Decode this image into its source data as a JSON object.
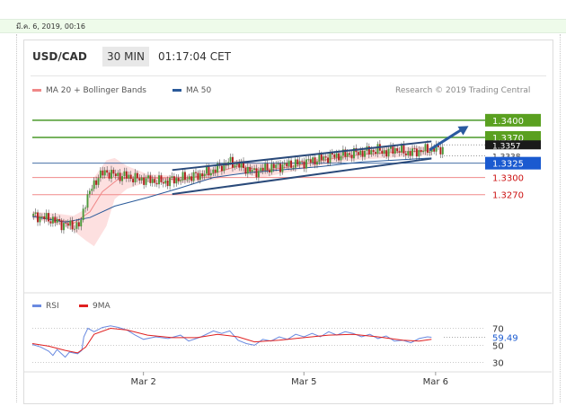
{
  "page": {
    "date_header": "มี.ค. 6, 2019, 00:16"
  },
  "header": {
    "pair": "USD/CAD",
    "timeframe": "30 MIN",
    "time": "01:17:04 CET"
  },
  "legend": {
    "bollinger": "MA 20 + Bollinger Bands",
    "ma50": "MA 50",
    "credit": "Research © 2019 Trading Central"
  },
  "rsi_legend": {
    "rsi": "RSI",
    "ma9": "9MA"
  },
  "colors": {
    "up": "#4a9a3a",
    "down": "#b02020",
    "bollinger": "#f08888",
    "ma50": "#2a5a9a",
    "resistance": "#4a9a2a",
    "support": "#f08a8a",
    "pivot": "#2a5a9a",
    "rsi": "#6a8ae0",
    "rsi_ma": "#e02020"
  },
  "chart_data": [
    {
      "type": "candlestick",
      "title": "USD/CAD 30 MIN",
      "x_labels": [
        "Mar 2",
        "Mar 5",
        "Mar 6"
      ],
      "ylim": [
        1.3108,
        1.3428
      ],
      "levels": [
        {
          "label": "1.3400",
          "value": 1.34,
          "kind": "resistance"
        },
        {
          "label": "1.3370",
          "value": 1.337,
          "kind": "resistance"
        },
        {
          "label": "1.3357",
          "value": 1.3357,
          "kind": "price"
        },
        {
          "label": "1.3338",
          "value": 1.3338,
          "kind": "price"
        },
        {
          "label": "1.3325",
          "value": 1.3325,
          "kind": "pivot"
        },
        {
          "label": "1.3300",
          "value": 1.33,
          "kind": "support"
        },
        {
          "label": "1.3270",
          "value": 1.327,
          "kind": "support"
        }
      ],
      "channel": {
        "upper": [
          [
            0.34,
            1.3313
          ],
          [
            0.97,
            1.3363
          ]
        ],
        "lower": [
          [
            0.34,
            1.3271
          ],
          [
            0.97,
            1.3333
          ]
        ]
      },
      "arrow": {
        "from": [
          0.965,
          1.3348
        ],
        "to": [
          1.06,
          1.339
        ]
      },
      "candle_count": 190,
      "price_path": [
        [
          0,
          1.3233
        ],
        [
          0.02,
          1.3231
        ],
        [
          0.05,
          1.3226
        ],
        [
          0.07,
          1.3219
        ],
        [
          0.09,
          1.3217
        ],
        [
          0.11,
          1.3215
        ],
        [
          0.12,
          1.3222
        ],
        [
          0.125,
          1.3252
        ],
        [
          0.14,
          1.3275
        ],
        [
          0.16,
          1.3302
        ],
        [
          0.18,
          1.331
        ],
        [
          0.2,
          1.3304
        ],
        [
          0.23,
          1.3302
        ],
        [
          0.26,
          1.3297
        ],
        [
          0.29,
          1.3295
        ],
        [
          0.32,
          1.3292
        ],
        [
          0.35,
          1.3297
        ],
        [
          0.38,
          1.33
        ],
        [
          0.41,
          1.3305
        ],
        [
          0.44,
          1.3312
        ],
        [
          0.46,
          1.332
        ],
        [
          0.48,
          1.3327
        ],
        [
          0.5,
          1.3322
        ],
        [
          0.52,
          1.3315
        ],
        [
          0.54,
          1.3309
        ],
        [
          0.56,
          1.3315
        ],
        [
          0.6,
          1.332
        ],
        [
          0.64,
          1.3324
        ],
        [
          0.68,
          1.3329
        ],
        [
          0.72,
          1.3336
        ],
        [
          0.76,
          1.334
        ],
        [
          0.8,
          1.3344
        ],
        [
          0.84,
          1.3348
        ],
        [
          0.86,
          1.3344
        ],
        [
          0.88,
          1.335
        ],
        [
          0.91,
          1.3343
        ],
        [
          0.94,
          1.3346
        ],
        [
          0.97,
          1.335
        ]
      ],
      "ma50": [
        [
          0,
          1.3232
        ],
        [
          0.08,
          1.3222
        ],
        [
          0.14,
          1.323
        ],
        [
          0.2,
          1.325
        ],
        [
          0.28,
          1.3265
        ],
        [
          0.36,
          1.3282
        ],
        [
          0.44,
          1.33
        ],
        [
          0.52,
          1.3308
        ],
        [
          0.6,
          1.3313
        ],
        [
          0.7,
          1.3319
        ],
        [
          0.8,
          1.3327
        ],
        [
          0.9,
          1.3331
        ],
        [
          0.97,
          1.3334
        ]
      ],
      "ma20": [
        [
          0,
          1.3234
        ],
        [
          0.06,
          1.3227
        ],
        [
          0.1,
          1.322
        ],
        [
          0.14,
          1.324
        ],
        [
          0.17,
          1.3275
        ],
        [
          0.21,
          1.3298
        ],
        [
          0.28,
          1.33
        ],
        [
          0.36,
          1.3296
        ],
        [
          0.44,
          1.3307
        ],
        [
          0.5,
          1.332
        ],
        [
          0.56,
          1.3312
        ],
        [
          0.64,
          1.332
        ],
        [
          0.72,
          1.3332
        ],
        [
          0.8,
          1.334
        ],
        [
          0.88,
          1.3344
        ],
        [
          0.97,
          1.3347
        ]
      ],
      "bb_upper": [
        [
          0,
          1.324
        ],
        [
          0.06,
          1.3237
        ],
        [
          0.1,
          1.3233
        ],
        [
          0.13,
          1.3245
        ],
        [
          0.15,
          1.33
        ],
        [
          0.18,
          1.333
        ],
        [
          0.2,
          1.3334
        ],
        [
          0.23,
          1.332
        ],
        [
          0.28,
          1.3306
        ],
        [
          0.36,
          1.3302
        ],
        [
          0.44,
          1.3318
        ],
        [
          0.5,
          1.3331
        ],
        [
          0.56,
          1.3325
        ],
        [
          0.64,
          1.3328
        ],
        [
          0.72,
          1.334
        ],
        [
          0.8,
          1.3349
        ],
        [
          0.88,
          1.3353
        ],
        [
          0.97,
          1.3355
        ]
      ],
      "bb_lower": [
        [
          0,
          1.3228
        ],
        [
          0.06,
          1.3218
        ],
        [
          0.1,
          1.3207
        ],
        [
          0.13,
          1.319
        ],
        [
          0.15,
          1.318
        ],
        [
          0.18,
          1.3215
        ],
        [
          0.2,
          1.3262
        ],
        [
          0.23,
          1.328
        ],
        [
          0.28,
          1.3292
        ],
        [
          0.36,
          1.329
        ],
        [
          0.44,
          1.3296
        ],
        [
          0.5,
          1.3307
        ],
        [
          0.56,
          1.33
        ],
        [
          0.64,
          1.3312
        ],
        [
          0.72,
          1.3324
        ],
        [
          0.8,
          1.3331
        ],
        [
          0.88,
          1.3335
        ],
        [
          0.97,
          1.3339
        ]
      ]
    },
    {
      "type": "line",
      "title": "RSI",
      "ylim": [
        25,
        78
      ],
      "y_ticks": [
        30,
        50,
        70
      ],
      "current": {
        "label": "59.49",
        "value": 59.49
      },
      "series": [
        {
          "name": "RSI",
          "values": [
            [
              0,
              51
            ],
            [
              0.02,
              48
            ],
            [
              0.04,
              43
            ],
            [
              0.05,
              38
            ],
            [
              0.06,
              45
            ],
            [
              0.08,
              36
            ],
            [
              0.09,
              42
            ],
            [
              0.11,
              40
            ],
            [
              0.12,
              44
            ],
            [
              0.125,
              60
            ],
            [
              0.135,
              70
            ],
            [
              0.15,
              66
            ],
            [
              0.17,
              71
            ],
            [
              0.19,
              73
            ],
            [
              0.21,
              71
            ],
            [
              0.23,
              68
            ],
            [
              0.25,
              62
            ],
            [
              0.27,
              57
            ],
            [
              0.3,
              60
            ],
            [
              0.33,
              58
            ],
            [
              0.36,
              62
            ],
            [
              0.38,
              55
            ],
            [
              0.41,
              60
            ],
            [
              0.44,
              67
            ],
            [
              0.46,
              64
            ],
            [
              0.48,
              67
            ],
            [
              0.5,
              56
            ],
            [
              0.52,
              52
            ],
            [
              0.54,
              50
            ],
            [
              0.56,
              57
            ],
            [
              0.58,
              55
            ],
            [
              0.6,
              60
            ],
            [
              0.62,
              57
            ],
            [
              0.64,
              63
            ],
            [
              0.66,
              60
            ],
            [
              0.68,
              64
            ],
            [
              0.7,
              60
            ],
            [
              0.72,
              66
            ],
            [
              0.74,
              62
            ],
            [
              0.76,
              66
            ],
            [
              0.78,
              64
            ],
            [
              0.8,
              60
            ],
            [
              0.82,
              63
            ],
            [
              0.84,
              58
            ],
            [
              0.86,
              61
            ],
            [
              0.88,
              55
            ],
            [
              0.9,
              56
            ],
            [
              0.92,
              53
            ],
            [
              0.94,
              58
            ],
            [
              0.96,
              60
            ],
            [
              0.97,
              59.5
            ]
          ]
        },
        {
          "name": "9MA",
          "values": [
            [
              0,
              52
            ],
            [
              0.04,
              49
            ],
            [
              0.08,
              44
            ],
            [
              0.11,
              41
            ],
            [
              0.13,
              48
            ],
            [
              0.15,
              63
            ],
            [
              0.19,
              70
            ],
            [
              0.23,
              68
            ],
            [
              0.28,
              62
            ],
            [
              0.34,
              59
            ],
            [
              0.4,
              59
            ],
            [
              0.45,
              63
            ],
            [
              0.5,
              60
            ],
            [
              0.54,
              54
            ],
            [
              0.6,
              56
            ],
            [
              0.66,
              59
            ],
            [
              0.72,
              62
            ],
            [
              0.78,
              63
            ],
            [
              0.84,
              60
            ],
            [
              0.9,
              56
            ],
            [
              0.94,
              55
            ],
            [
              0.97,
              57
            ]
          ]
        }
      ]
    }
  ]
}
